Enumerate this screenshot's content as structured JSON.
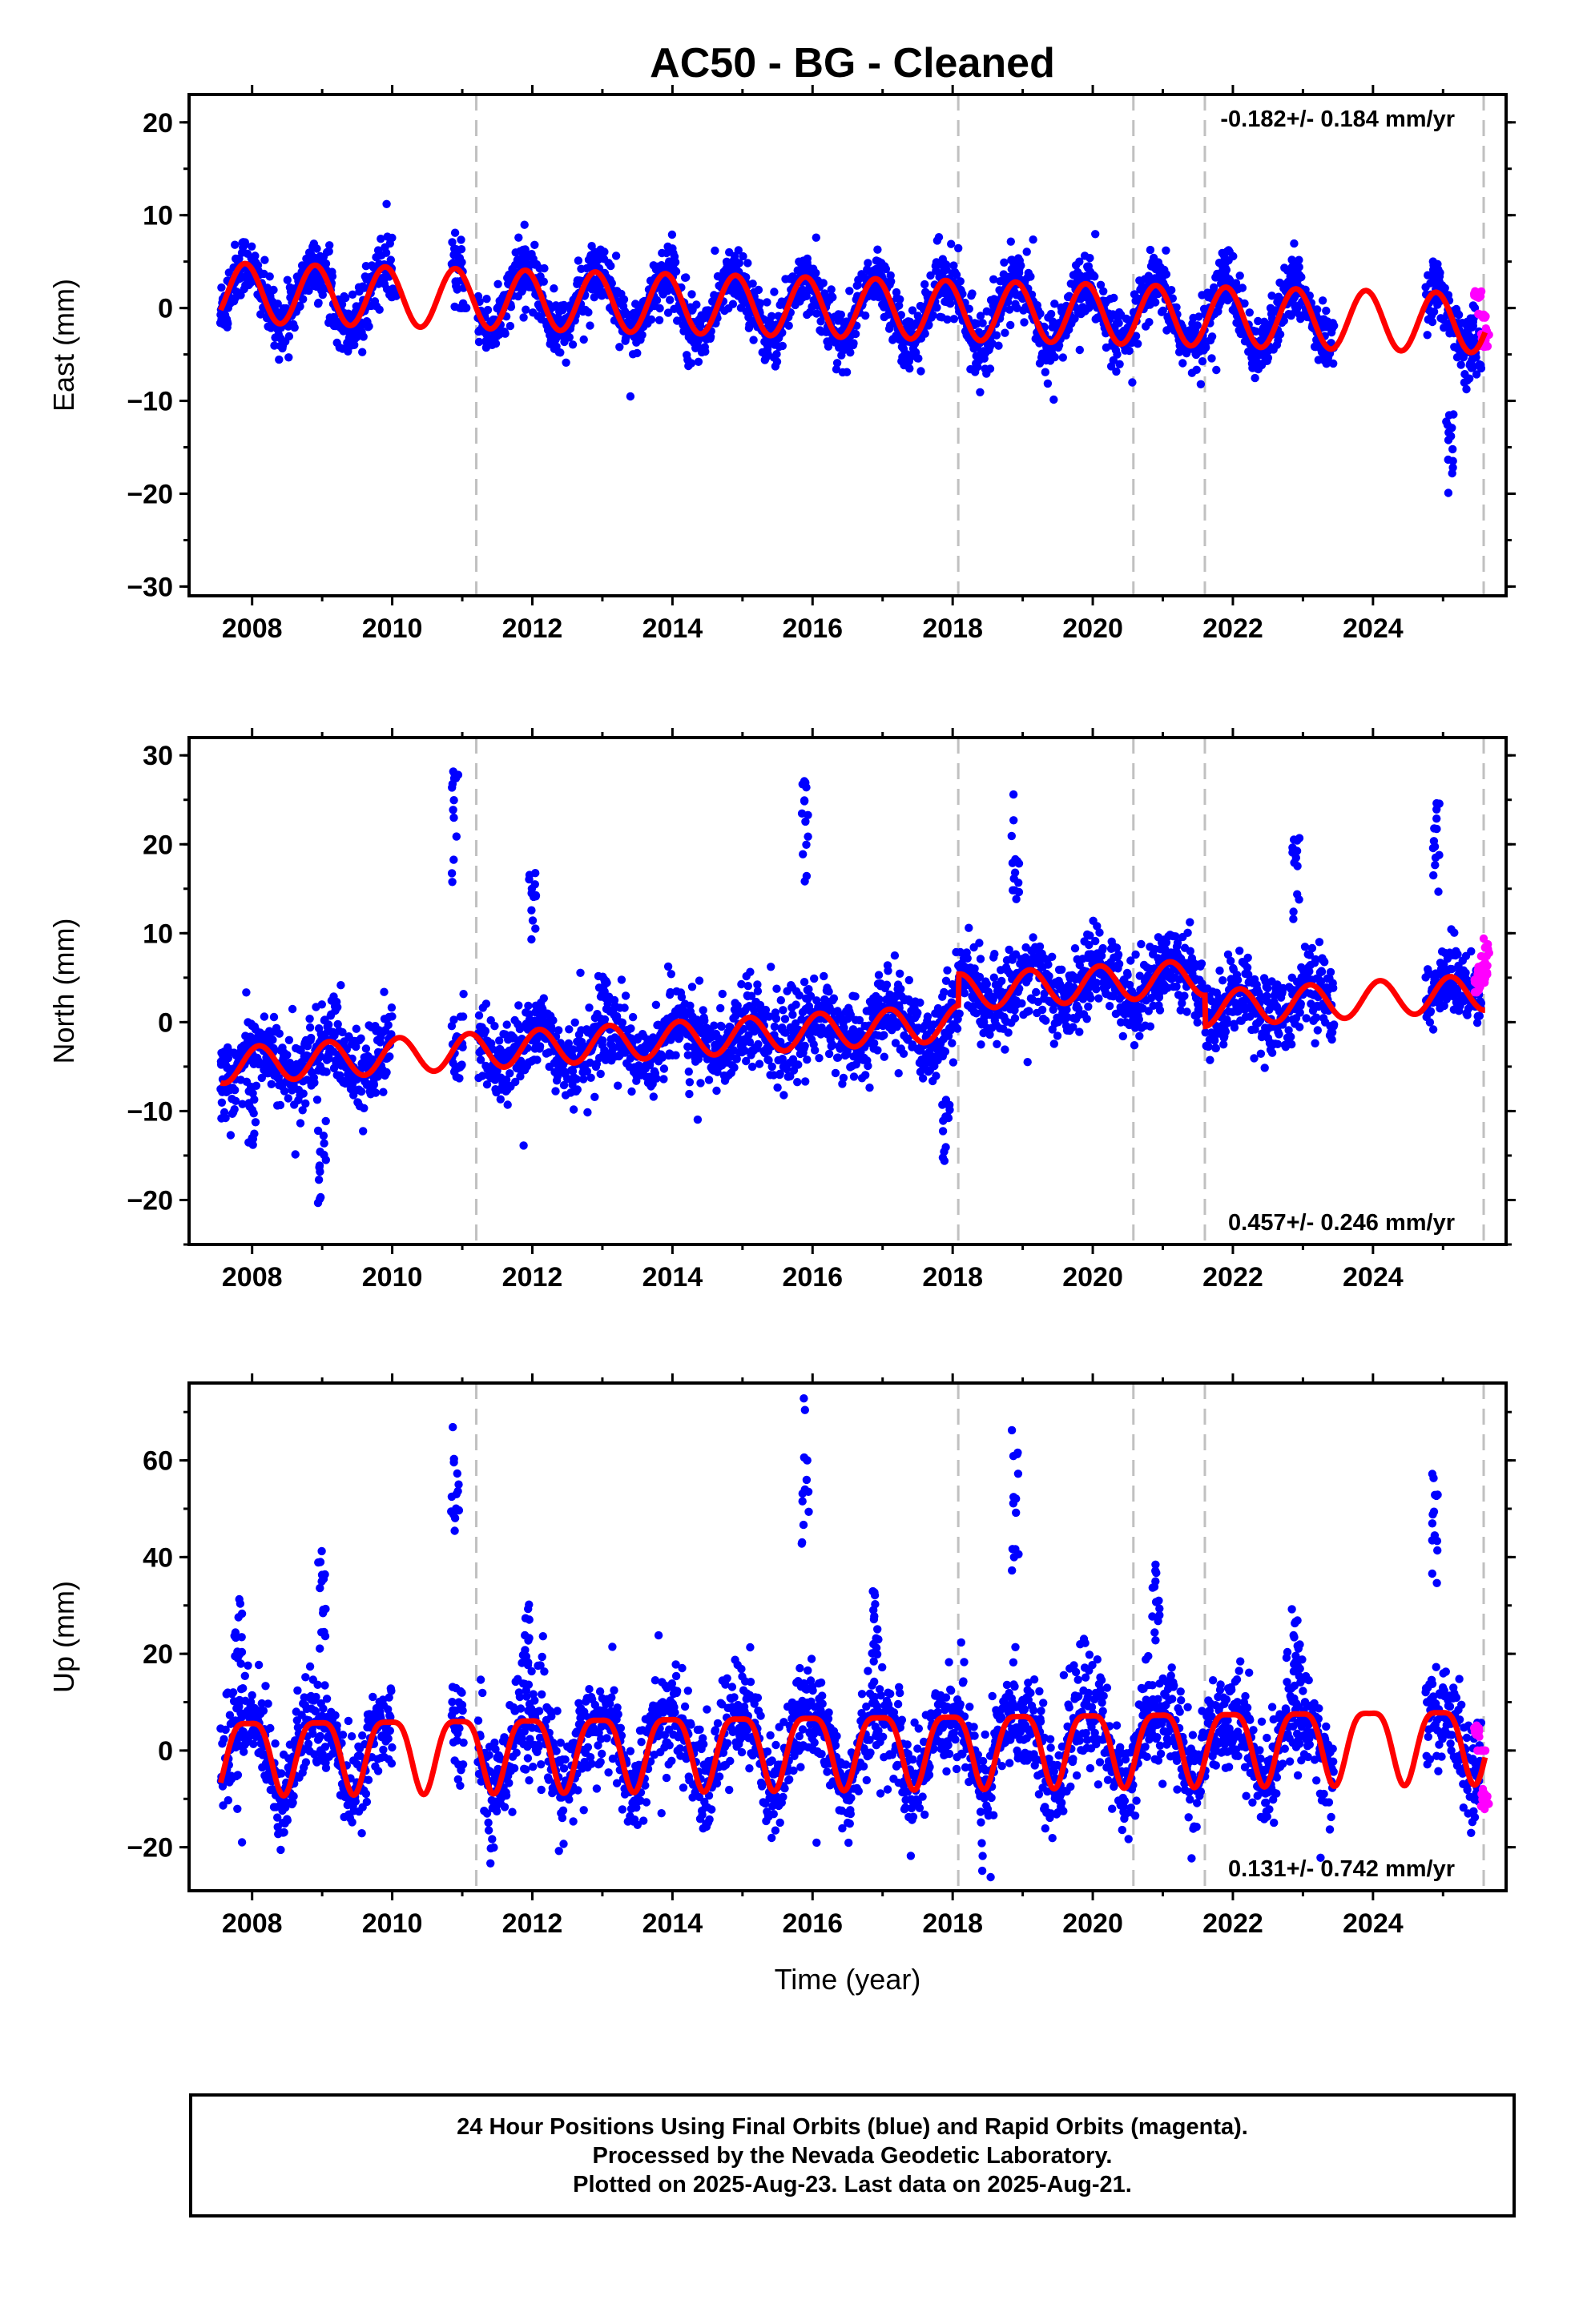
{
  "title": "AC50  - BG - Cleaned",
  "colors": {
    "final": "#0000ff",
    "rapid": "#ff00ff",
    "model": "#ff0000",
    "breaks": "#c0c0c0"
  },
  "x_ticks": [
    "2008",
    "2010",
    "2012",
    "2014",
    "2016",
    "2018",
    "2020",
    "2022",
    "2024"
  ],
  "xlabel": "Time (year)",
  "footer": {
    "line1": "24 Hour Positions Using Final Orbits (blue) and Rapid Orbits (magenta).",
    "line2": "Processed by the Nevada Geodetic Laboratory.",
    "line3": "Plotted on 2025-Aug-23. Last data on 2025-Aug-21."
  },
  "chart_data": [
    {
      "type": "scatter",
      "panel": "east",
      "ylabel": "East (mm)",
      "xlim": [
        2007.1,
        2025.9
      ],
      "ylim": [
        -31,
        23
      ],
      "y_ticks": [
        20,
        10,
        0,
        -10,
        -20,
        -30
      ],
      "rate_text": "-0.182+/- 0.184 mm/yr",
      "rate_position": "top-right",
      "equipment_breaks": [
        2011.2,
        2018.08,
        2020.58,
        2021.6,
        2025.58
      ],
      "series": [
        {
          "name": "final",
          "description_only": true,
          "x": [
            2007.6,
            2008.2,
            2008.9,
            2009.5,
            2010.0,
            2011.0,
            2011.9,
            2012.9,
            2013.9,
            2014.9,
            2015.9,
            2016.9,
            2017.9,
            2018.9,
            2019.9,
            2020.9,
            2021.9,
            2022.9,
            2023.3,
            2024.9,
            2025.1,
            2025.4
          ],
          "y": [
            -2,
            2,
            4,
            -3,
            2,
            0,
            4,
            3,
            3,
            4,
            5,
            2,
            3,
            5,
            2,
            3,
            6,
            5,
            -2,
            5,
            -20,
            -2
          ]
        },
        {
          "name": "rapid",
          "description_only": true,
          "x": [
            2025.5,
            2025.55,
            2025.6
          ],
          "y": [
            2,
            -1,
            -4
          ]
        }
      ],
      "model": {
        "offset": 0.3,
        "trend": -0.182,
        "amplitude": 3.2,
        "phase_peak": 0.9
      }
    },
    {
      "type": "scatter",
      "panel": "north",
      "ylabel": "North (mm)",
      "xlim": [
        2007.1,
        2025.9
      ],
      "ylim": [
        -25,
        32
      ],
      "y_ticks": [
        30,
        20,
        10,
        0,
        -10,
        -20
      ],
      "rate_text": "0.457+/- 0.246 mm/yr",
      "rate_position": "bottom-right",
      "equipment_breaks": [
        2011.2,
        2018.08,
        2020.58,
        2021.6,
        2025.58
      ],
      "series": [
        {
          "name": "final",
          "description_only": true,
          "x": [
            2007.6,
            2008.0,
            2009.0,
            2010.9,
            2012.0,
            2013.0,
            2015.9,
            2016.9,
            2017.9,
            2018.9,
            2019.9,
            2020.9,
            2022.9,
            2024.9
          ],
          "y": [
            -5,
            -14,
            -20,
            27,
            16,
            5,
            26,
            2,
            -15,
            25,
            5,
            5,
            20,
            25
          ]
        },
        {
          "name": "rapid",
          "description_only": true,
          "x": [
            2025.5,
            2025.55,
            2025.6
          ],
          "y": [
            5,
            7,
            9
          ]
        }
      ],
      "model": {
        "offset": -1.5,
        "trend": 0.457,
        "amplitude": 2.0,
        "phase_peak": 0.1
      }
    },
    {
      "type": "scatter",
      "panel": "up",
      "ylabel": "Up (mm)",
      "xlim": [
        2007.1,
        2025.9
      ],
      "ylim": [
        -29,
        76
      ],
      "y_ticks": [
        60,
        40,
        20,
        0,
        -20
      ],
      "rate_text": "0.131+/- 0.742 mm/yr",
      "rate_position": "bottom-right",
      "equipment_breaks": [
        2011.2,
        2018.08,
        2020.58,
        2021.6,
        2025.58
      ],
      "series": [
        {
          "name": "final",
          "description_only": true,
          "x": [
            2007.8,
            2009.0,
            2010.9,
            2011.9,
            2015.9,
            2016.9,
            2018.9,
            2020.9,
            2022.9,
            2024.9
          ],
          "y": [
            30,
            42,
            65,
            30,
            70,
            32,
            64,
            38,
            28,
            60
          ]
        },
        {
          "name": "rapid",
          "description_only": true,
          "x": [
            2025.5,
            2025.55,
            2025.6
          ],
          "y": [
            5,
            0,
            -12
          ]
        }
      ],
      "model": {
        "offset": 1.0,
        "trend": 0.131,
        "amplitude": 7.5,
        "phase_peak": 0.95
      }
    }
  ]
}
